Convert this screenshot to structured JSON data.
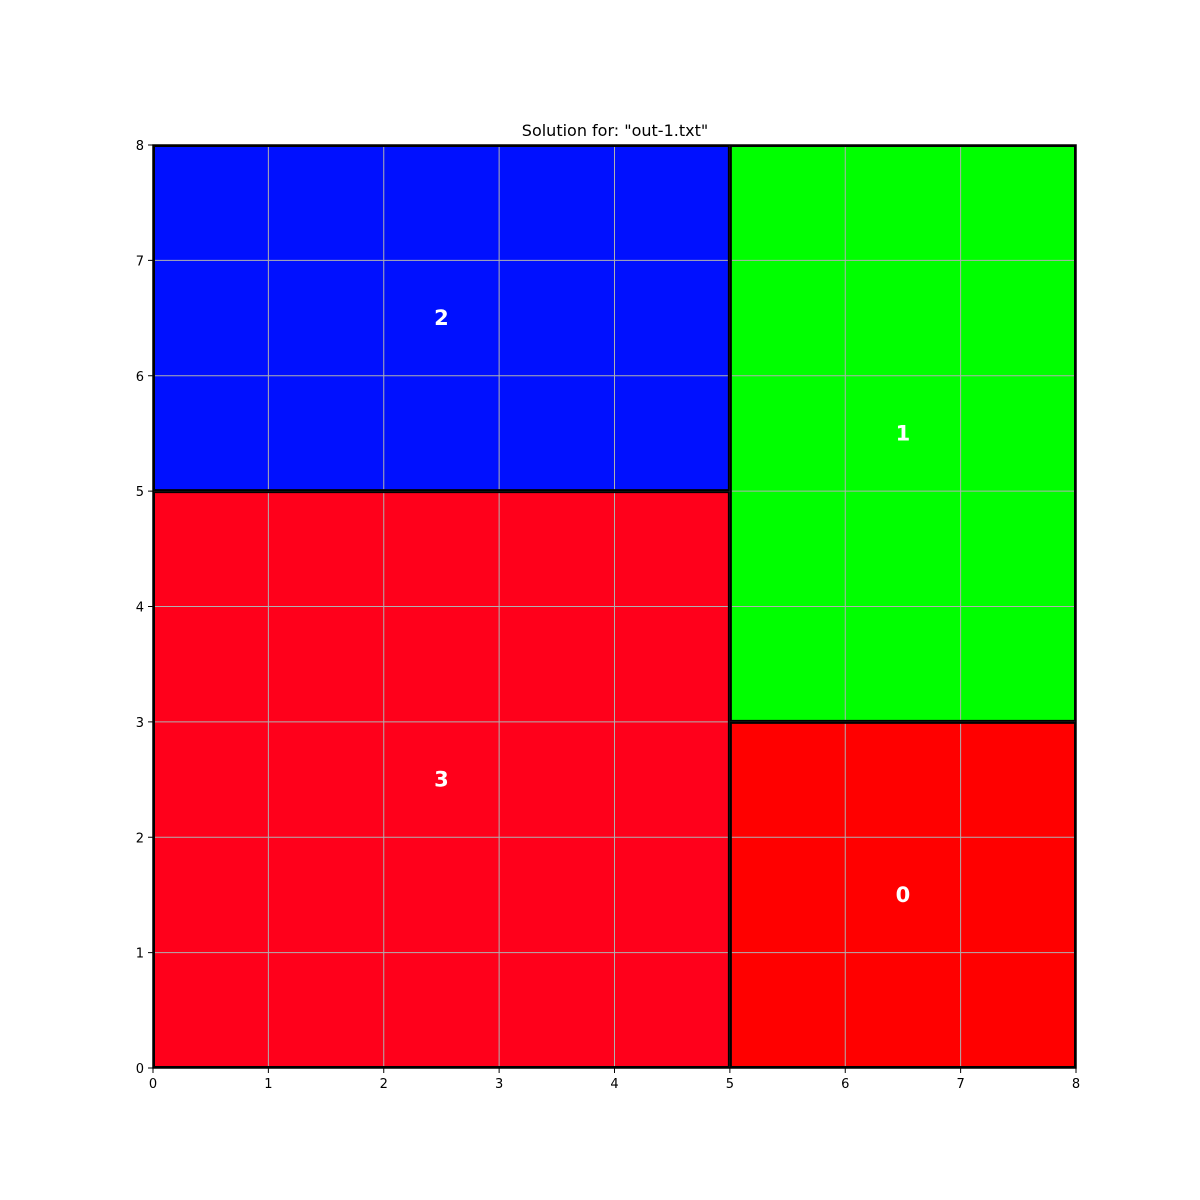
{
  "chart_data": {
    "type": "rectangle-packing",
    "title": "Solution for: \"out-1.txt\"",
    "xlim": [
      0,
      8
    ],
    "ylim": [
      0,
      8
    ],
    "xticks": [
      "0",
      "1",
      "2",
      "3",
      "4",
      "5",
      "6",
      "7",
      "8"
    ],
    "yticks": [
      "0",
      "1",
      "2",
      "3",
      "4",
      "5",
      "6",
      "7",
      "8"
    ],
    "grid": true,
    "rectangles": [
      {
        "label": "0",
        "x": 5,
        "y": 0,
        "w": 3,
        "h": 3,
        "color": "#ff0000"
      },
      {
        "label": "1",
        "x": 5,
        "y": 3,
        "w": 3,
        "h": 5,
        "color": "#00ff00"
      },
      {
        "label": "2",
        "x": 0,
        "y": 5,
        "w": 5,
        "h": 3,
        "color": "#0010ff"
      },
      {
        "label": "3",
        "x": 0,
        "y": 0,
        "w": 5,
        "h": 5,
        "color": "#ff001b"
      }
    ]
  }
}
